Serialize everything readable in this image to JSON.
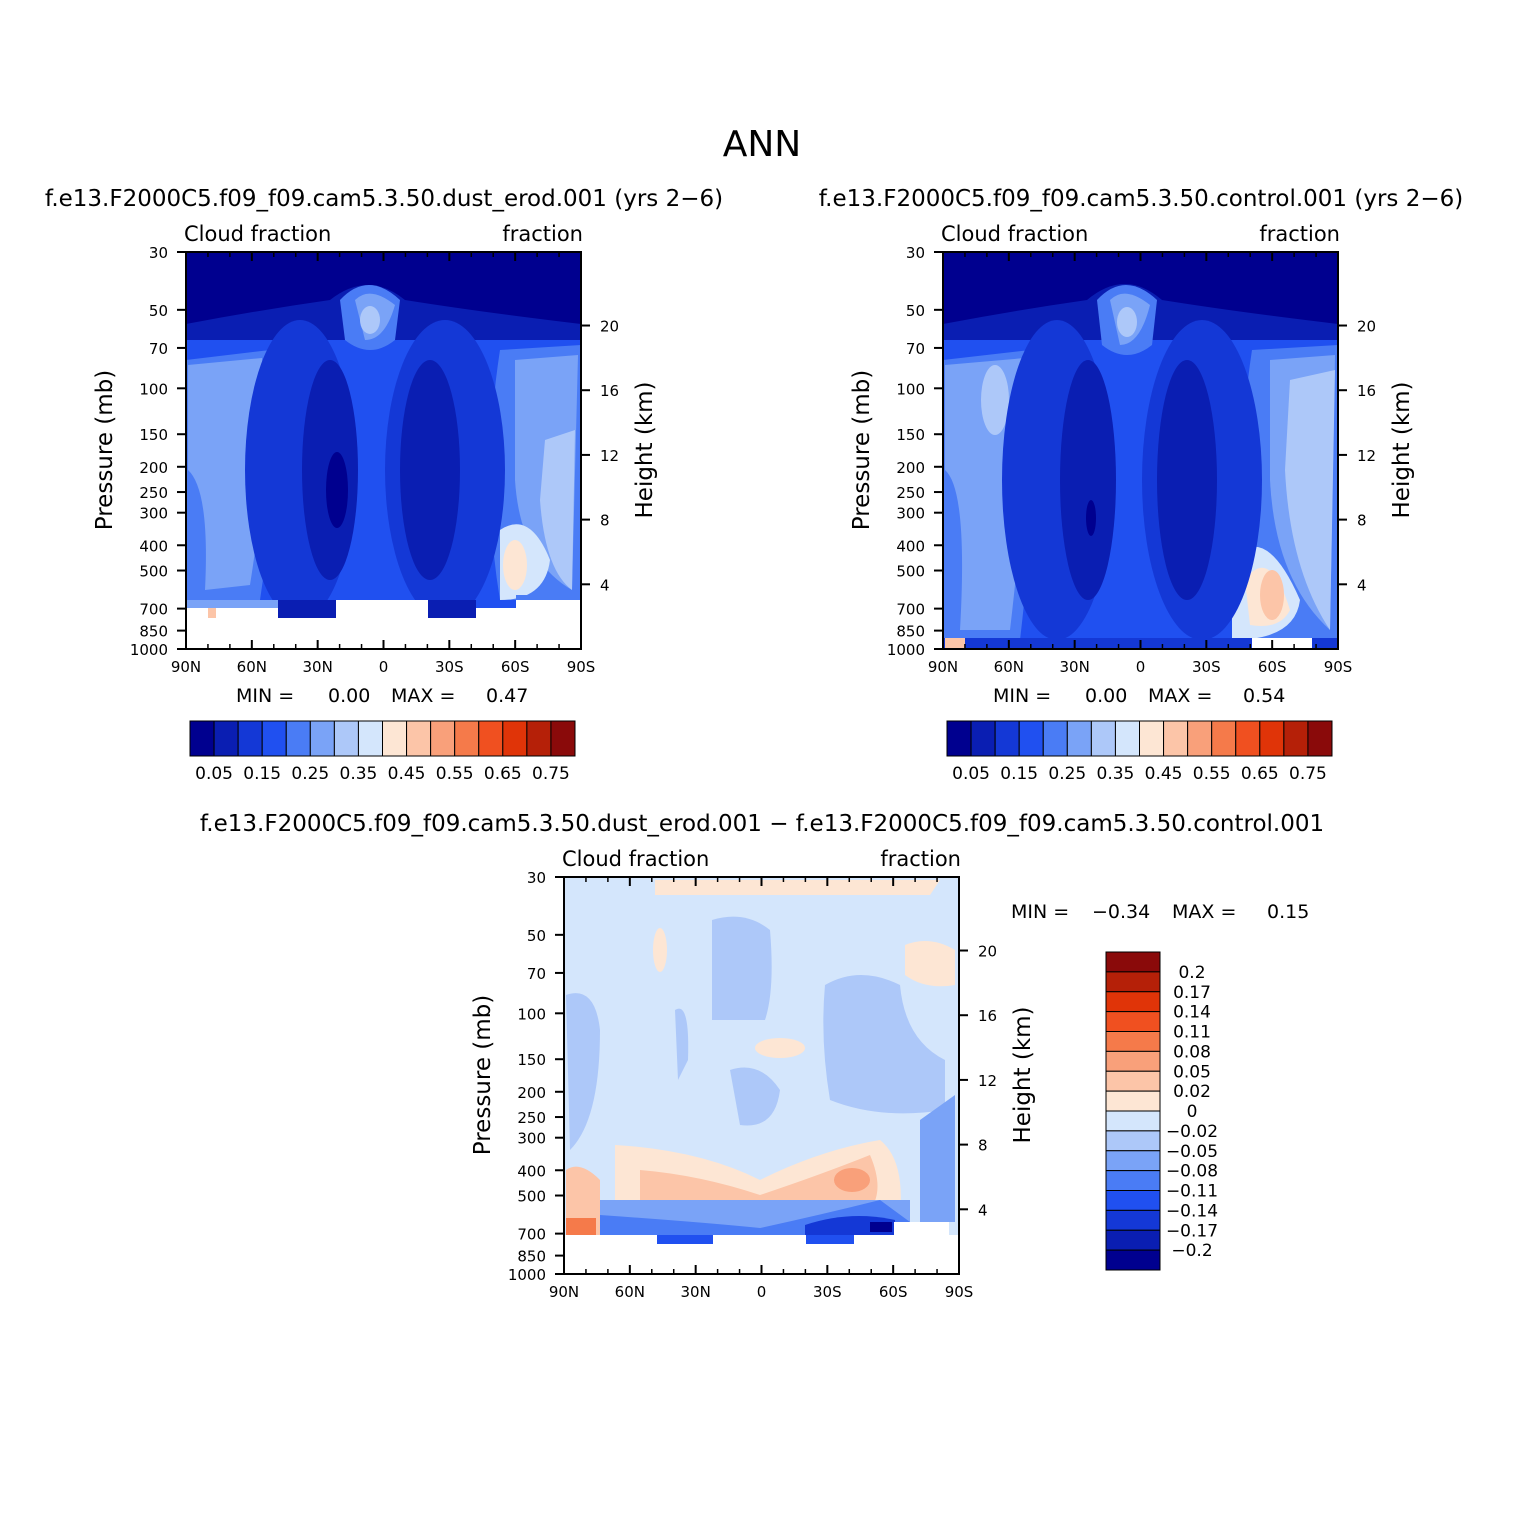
{
  "figure_title": "ANN",
  "chart_data": [
    {
      "type": "heatmap",
      "title": "f.e13.F2000C5.f09_f09.cam5.3.50.dust_erod.001  (yrs 2−6)",
      "left_label": "Cloud fraction",
      "right_label": "fraction",
      "xlabel": "",
      "ylabel": "Pressure  (mb)",
      "ylabel_right": "Height  (km)",
      "x_ticks": [
        "90N",
        "60N",
        "30N",
        "0",
        "30S",
        "60S",
        "90S"
      ],
      "xlim": [
        90,
        -90
      ],
      "y_ticks": [
        30,
        50,
        70,
        100,
        150,
        200,
        250,
        300,
        400,
        500,
        700,
        850,
        1000
      ],
      "ylim": [
        1000,
        30
      ],
      "y_right_ticks": [
        20,
        16,
        12,
        8,
        4
      ],
      "min_label": "MIN =",
      "min_value": "0.00",
      "max_label": "MAX =",
      "max_value": "0.47",
      "colorbar": {
        "orientation": "horizontal",
        "labels": [
          "0.05",
          "0.15",
          "0.25",
          "0.35",
          "0.45",
          "0.55",
          "0.65",
          "0.75"
        ],
        "colors": [
          "#00008f",
          "#0a1eb2",
          "#1438d6",
          "#2050f0",
          "#4a7cf5",
          "#7aa3f7",
          "#adc8f9",
          "#d4e6fc",
          "#fde6d4",
          "#fcc5a8",
          "#f9a07a",
          "#f57a4a",
          "#f05020",
          "#e03408",
          "#b52008",
          "#8a0a0a"
        ]
      }
    },
    {
      "type": "heatmap",
      "title": "f.e13.F2000C5.f09_f09.cam5.3.50.control.001  (yrs 2−6)",
      "left_label": "Cloud fraction",
      "right_label": "fraction",
      "xlabel": "",
      "ylabel": "Pressure  (mb)",
      "ylabel_right": "Height  (km)",
      "x_ticks": [
        "90N",
        "60N",
        "30N",
        "0",
        "30S",
        "60S",
        "90S"
      ],
      "xlim": [
        90,
        -90
      ],
      "y_ticks": [
        30,
        50,
        70,
        100,
        150,
        200,
        250,
        300,
        400,
        500,
        700,
        850,
        1000
      ],
      "ylim": [
        1000,
        30
      ],
      "y_right_ticks": [
        20,
        16,
        12,
        8,
        4
      ],
      "min_label": "MIN =",
      "min_value": "0.00",
      "max_label": "MAX =",
      "max_value": "0.54",
      "colorbar": {
        "orientation": "horizontal",
        "labels": [
          "0.05",
          "0.15",
          "0.25",
          "0.35",
          "0.45",
          "0.55",
          "0.65",
          "0.75"
        ],
        "colors": [
          "#00008f",
          "#0a1eb2",
          "#1438d6",
          "#2050f0",
          "#4a7cf5",
          "#7aa3f7",
          "#adc8f9",
          "#d4e6fc",
          "#fde6d4",
          "#fcc5a8",
          "#f9a07a",
          "#f57a4a",
          "#f05020",
          "#e03408",
          "#b52008",
          "#8a0a0a"
        ]
      }
    },
    {
      "type": "heatmap",
      "title": "f.e13.F2000C5.f09_f09.cam5.3.50.dust_erod.001 − f.e13.F2000C5.f09_f09.cam5.3.50.control.001",
      "left_label": "Cloud fraction",
      "right_label": "fraction",
      "xlabel": "",
      "ylabel": "Pressure  (mb)",
      "ylabel_right": "Height  (km)",
      "x_ticks": [
        "90N",
        "60N",
        "30N",
        "0",
        "30S",
        "60S",
        "90S"
      ],
      "xlim": [
        90,
        -90
      ],
      "y_ticks": [
        30,
        50,
        70,
        100,
        150,
        200,
        250,
        300,
        400,
        500,
        700,
        850,
        1000
      ],
      "ylim": [
        1000,
        30
      ],
      "y_right_ticks": [
        20,
        16,
        12,
        8,
        4
      ],
      "min_label": "MIN =",
      "min_value": "−0.34",
      "max_label": "MAX =",
      "max_value": "0.15",
      "colorbar": {
        "orientation": "vertical",
        "labels": [
          "0.2",
          "0.17",
          "0.14",
          "0.11",
          "0.08",
          "0.05",
          "0.02",
          "0",
          "−0.02",
          "−0.05",
          "−0.08",
          "−0.11",
          "−0.14",
          "−0.17",
          "−0.2"
        ],
        "colors": [
          "#8a0a0a",
          "#b52008",
          "#e03408",
          "#f05020",
          "#f57a4a",
          "#f9a07a",
          "#fcc5a8",
          "#fde6d4",
          "#d4e6fc",
          "#adc8f9",
          "#7aa3f7",
          "#4a7cf5",
          "#2050f0",
          "#1438d6",
          "#0a1eb2",
          "#00008f"
        ]
      }
    }
  ]
}
